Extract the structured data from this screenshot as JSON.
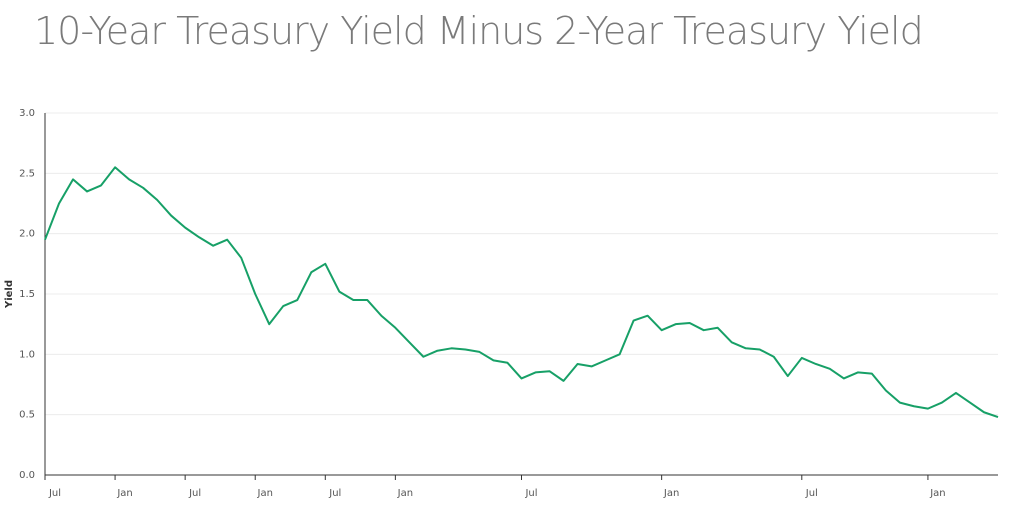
{
  "chart_data": {
    "type": "line",
    "title": "10-Year Treasury Yield Minus 2-Year Treasury Yield",
    "y_label": "Yield",
    "color": "#17a067",
    "grid": true,
    "ylim": [
      0,
      3
    ],
    "yticks": [
      {
        "value": 0,
        "label": "0.0"
      },
      0.5,
      {
        "value": 1,
        "label": "1.0"
      },
      1.5,
      {
        "value": 2,
        "label": "2.0"
      },
      2.5,
      {
        "value": 3,
        "label": "3.0"
      }
    ],
    "categories": [
      "Jul",
      null,
      null,
      null,
      null,
      "Jan",
      null,
      null,
      null,
      null,
      "Jul",
      null,
      null,
      null,
      null,
      "Jan",
      null,
      null,
      null,
      null,
      "Jul",
      null,
      null,
      null,
      null,
      "Jan",
      null,
      null,
      null,
      null,
      null,
      null,
      null,
      null,
      "Jul",
      null,
      null,
      null,
      null,
      null,
      null,
      null,
      null,
      null,
      "Jan",
      null,
      null,
      null,
      null,
      null,
      null,
      null,
      null,
      null,
      "Jul",
      null,
      null,
      null,
      null,
      null,
      null,
      null,
      null,
      "Jan",
      null,
      null,
      null,
      null,
      null
    ],
    "values": [
      1.95,
      2.25,
      2.45,
      2.35,
      2.4,
      2.55,
      2.45,
      2.38,
      2.28,
      2.15,
      2.05,
      1.97,
      1.9,
      1.95,
      1.8,
      1.5,
      1.25,
      1.4,
      1.45,
      1.68,
      1.75,
      1.52,
      1.45,
      1.45,
      1.32,
      1.22,
      1.1,
      0.98,
      1.03,
      1.05,
      1.04,
      1.02,
      0.95,
      0.93,
      0.8,
      0.85,
      0.86,
      0.78,
      0.92,
      0.9,
      0.95,
      1.0,
      1.28,
      1.32,
      1.2,
      1.25,
      1.26,
      1.2,
      1.22,
      1.1,
      1.05,
      1.04,
      0.98,
      0.82,
      0.97,
      0.92,
      0.88,
      0.8,
      0.85,
      0.84,
      0.7,
      0.6,
      0.57,
      0.55,
      0.6,
      0.68,
      0.6,
      0.52,
      0.48
    ]
  }
}
